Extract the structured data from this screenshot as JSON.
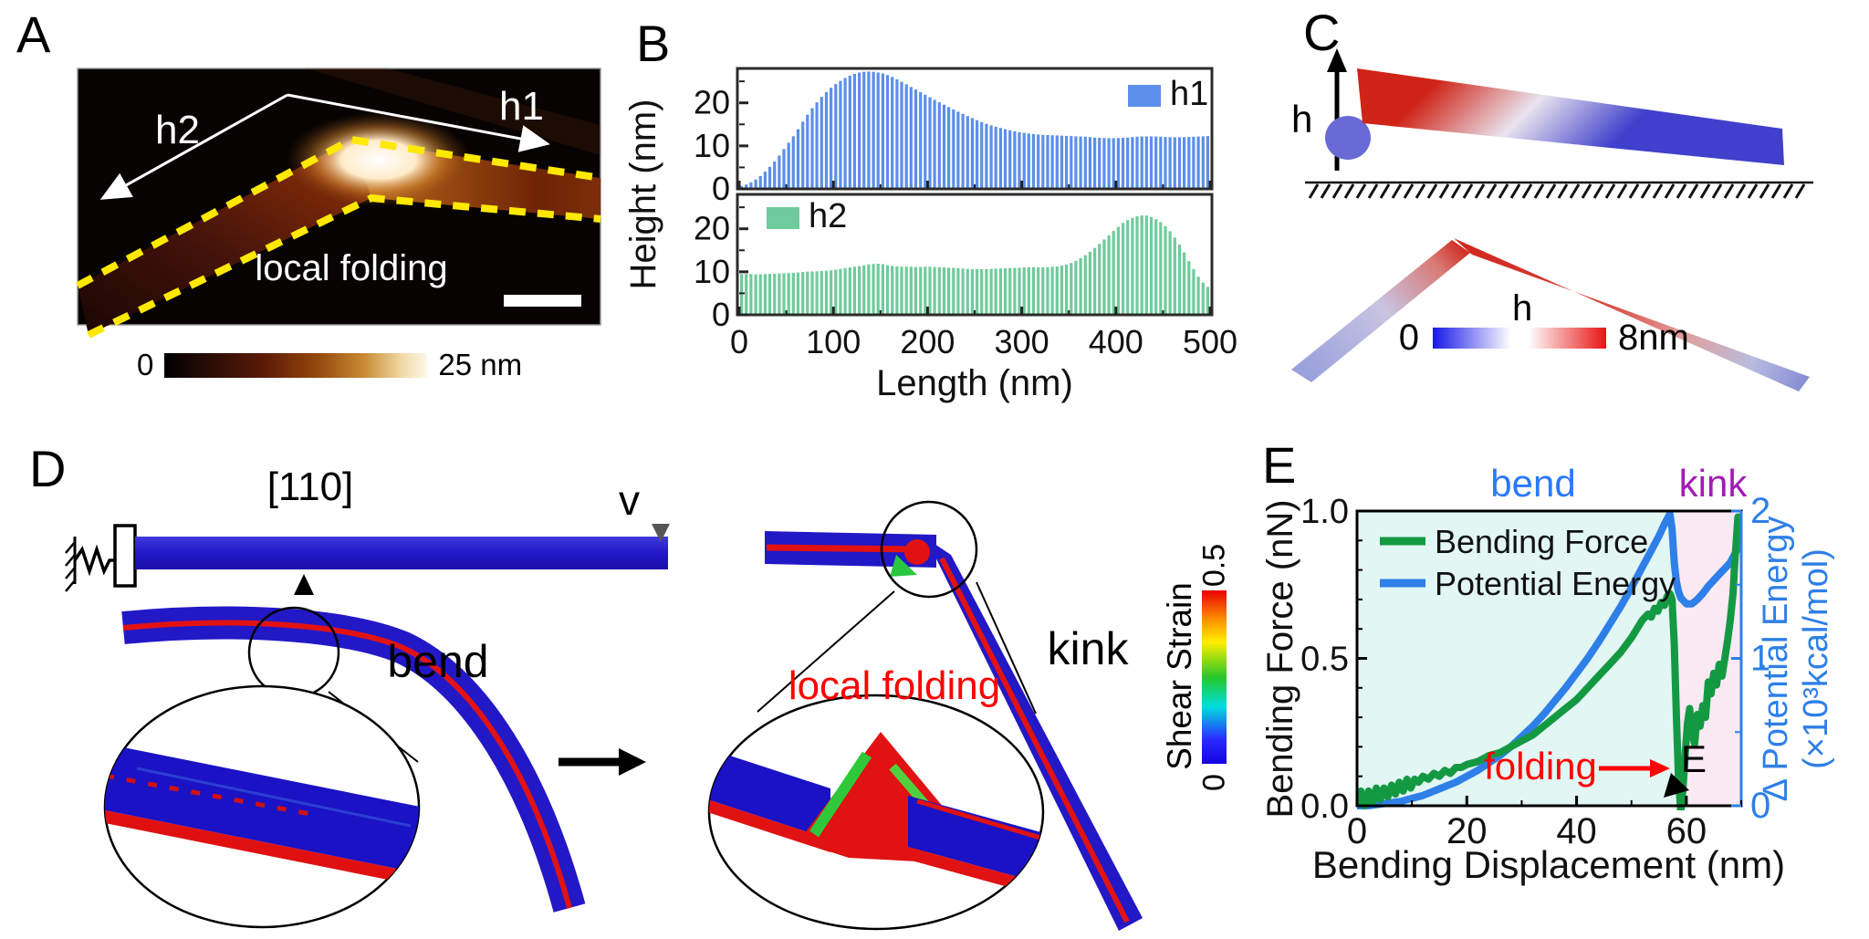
{
  "figure": {
    "panels": {
      "A": {
        "letter": "A",
        "h1": "h1",
        "h2": "h2",
        "annotation": "local folding",
        "colorbar_min": "0",
        "colorbar_max": "25 nm"
      },
      "B": {
        "letter": "B",
        "ylabel": "Height (nm)",
        "xlabel": "Length (nm)",
        "h1_legend": "h1",
        "h2_legend": "h2",
        "y_ticks": [
          "0",
          "10",
          "20"
        ],
        "x_ticks": [
          "0",
          "100",
          "200",
          "300",
          "400",
          "500"
        ]
      },
      "C": {
        "letter": "C",
        "h_axis": "h",
        "cb_label": "h",
        "cb_min": "0",
        "cb_max": "8nm"
      },
      "D": {
        "letter": "D",
        "crystal_dir": "[110]",
        "velocity": "v",
        "bend": "bend",
        "kink": "kink",
        "local_folding": "local folding",
        "cb_label": "Shear Strain",
        "cb_min": "0",
        "cb_max": "0.5"
      },
      "E": {
        "letter": "E",
        "bend": "bend",
        "kink": "kink",
        "ylabel_left": "Bending Force (nN)",
        "ylabel_right1": "Δ Potential Energy",
        "ylabel_right2": "(×10³kcal/mol)",
        "xlabel": "Bending Displacement (nm)",
        "legend": [
          "Bending Force",
          "Potential Energy"
        ],
        "folding": "folding",
        "marker": "E",
        "x_ticks": [
          "0",
          "20",
          "40",
          "60"
        ],
        "left_ticks": [
          "0.0",
          "0.5",
          "1.0"
        ],
        "right_ticks": [
          "0",
          "1",
          "2"
        ]
      }
    }
  },
  "colors": {
    "h1": "#5B8FE9",
    "h2": "#6FCB9B",
    "force": "#149943",
    "energy": "#2E7FE8",
    "bend_text": "#2979FF",
    "kink_text": "#A21CB4",
    "bend_bg": "#E2F6F3",
    "kink_bg": "#FBE9F4",
    "folding_red": "#FF0000",
    "afm_yellow": "#FFE900"
  },
  "chart_data": [
    {
      "type": "bar",
      "name": "h1",
      "xlabel": "Length (nm)",
      "ylabel": "Height (nm)",
      "xlim": [
        0,
        500
      ],
      "ylim": [
        0,
        28
      ],
      "x_step": 10,
      "values": [
        0.5,
        1.2,
        2.5,
        4.5,
        7,
        10,
        13,
        16.5,
        19.5,
        22,
        24,
        25.5,
        26.6,
        27.2,
        27.3,
        27,
        26.3,
        25.2,
        24,
        22.8,
        21.6,
        20.4,
        19.3,
        18.2,
        17.2,
        16.2,
        15.3,
        14.6,
        14,
        13.5,
        13.1,
        12.8,
        12.6,
        12.5,
        12.4,
        12.3,
        12.2,
        12.1,
        11.9,
        11.8,
        11.8,
        11.9,
        12.1,
        12.2,
        12.2,
        12.1,
        12,
        12,
        12.1,
        12.2,
        12.3
      ]
    },
    {
      "type": "bar",
      "name": "h2",
      "xlabel": "Length (nm)",
      "ylabel": "Height (nm)",
      "xlim": [
        0,
        500
      ],
      "ylim": [
        0,
        28
      ],
      "x_step": 10,
      "values": [
        9.5,
        9.5,
        9.4,
        9.5,
        9.6,
        9.7,
        9.8,
        10,
        10.1,
        10.2,
        10.4,
        10.8,
        11.1,
        11.4,
        11.8,
        11.9,
        11.4,
        11.2,
        11.2,
        11.1,
        11.2,
        11.1,
        11,
        10.9,
        10.7,
        10.6,
        10.6,
        10.7,
        10.8,
        10.9,
        11,
        11.1,
        11,
        11.1,
        11.3,
        11.8,
        12.8,
        14.2,
        16,
        18,
        20,
        21.8,
        22.8,
        23.2,
        22.6,
        21.2,
        18.8,
        15.5,
        11.5,
        8,
        6
      ]
    },
    {
      "type": "line",
      "xlabel": "Bending Displacement (nm)",
      "xlim": [
        0,
        70
      ],
      "ylabel_left": "Bending Force (nN)",
      "ylim_left": [
        0,
        1.0
      ],
      "ylabel_right": "Δ Potential Energy (×10³kcal/mol)",
      "ylim_right": [
        0,
        2
      ],
      "regions": [
        {
          "label": "bend",
          "range": [
            0,
            58.3
          ]
        },
        {
          "label": "kink",
          "range": [
            58.3,
            70
          ]
        }
      ],
      "series": [
        {
          "name": "Bending Force",
          "axis": "left",
          "points": [
            [
              0,
              0.01
            ],
            [
              0.7,
              0.05
            ],
            [
              1.4,
              0
            ],
            [
              2.1,
              0.05
            ],
            [
              2.8,
              0.01
            ],
            [
              3.5,
              0.06
            ],
            [
              4.2,
              0.02
            ],
            [
              4.9,
              0.06
            ],
            [
              5.6,
              0.03
            ],
            [
              6.3,
              0.07
            ],
            [
              7,
              0.04
            ],
            [
              7.7,
              0.08
            ],
            [
              8.4,
              0.05
            ],
            [
              9.1,
              0.09
            ],
            [
              9.8,
              0.06
            ],
            [
              10.5,
              0.09
            ],
            [
              11.2,
              0.08
            ],
            [
              12,
              0.1
            ],
            [
              13,
              0.09
            ],
            [
              14,
              0.11
            ],
            [
              15,
              0.1
            ],
            [
              16,
              0.12
            ],
            [
              17,
              0.11
            ],
            [
              18,
              0.13
            ],
            [
              19,
              0.13
            ],
            [
              20,
              0.14
            ],
            [
              22,
              0.15
            ],
            [
              24,
              0.17
            ],
            [
              26,
              0.18
            ],
            [
              28,
              0.2
            ],
            [
              30,
              0.22
            ],
            [
              32,
              0.24
            ],
            [
              34,
              0.27
            ],
            [
              36,
              0.3
            ],
            [
              38,
              0.33
            ],
            [
              40,
              0.36
            ],
            [
              42,
              0.4
            ],
            [
              44,
              0.44
            ],
            [
              46,
              0.48
            ],
            [
              48,
              0.52
            ],
            [
              50,
              0.57
            ],
            [
              51,
              0.6
            ],
            [
              52,
              0.63
            ],
            [
              53,
              0.65
            ],
            [
              53.6,
              0.64
            ],
            [
              54.2,
              0.67
            ],
            [
              54.8,
              0.66
            ],
            [
              55.4,
              0.69
            ],
            [
              56,
              0.68
            ],
            [
              56.5,
              0.71
            ],
            [
              57,
              0.72
            ],
            [
              57.4,
              0.7
            ],
            [
              57.8,
              0.55
            ],
            [
              58.2,
              0.3
            ],
            [
              58.6,
              0.08
            ],
            [
              59,
              -0.02
            ],
            [
              59.4,
              0.06
            ],
            [
              59.8,
              0.18
            ],
            [
              60.2,
              0.28
            ],
            [
              60.6,
              0.33
            ],
            [
              61,
              0.25
            ],
            [
              61.5,
              0.21
            ],
            [
              62,
              0.31
            ],
            [
              62.5,
              0.27
            ],
            [
              63,
              0.34
            ],
            [
              63.5,
              0.3
            ],
            [
              64,
              0.42
            ],
            [
              64.5,
              0.38
            ],
            [
              65,
              0.45
            ],
            [
              65.5,
              0.41
            ],
            [
              66,
              0.48
            ],
            [
              66.5,
              0.44
            ],
            [
              67,
              0.5
            ],
            [
              67.5,
              0.56
            ],
            [
              68,
              0.63
            ],
            [
              68.5,
              0.72
            ],
            [
              68.8,
              0.82
            ],
            [
              69.1,
              0.9
            ],
            [
              69.4,
              0.98
            ]
          ]
        },
        {
          "name": "Potential Energy",
          "axis": "right",
          "points": [
            [
              0,
              0
            ],
            [
              2,
              0
            ],
            [
              4,
              0.01
            ],
            [
              6,
              0.02
            ],
            [
              8,
              0.03
            ],
            [
              10,
              0.05
            ],
            [
              12,
              0.07
            ],
            [
              14,
              0.1
            ],
            [
              16,
              0.13
            ],
            [
              18,
              0.16
            ],
            [
              20,
              0.2
            ],
            [
              22,
              0.24
            ],
            [
              24,
              0.29
            ],
            [
              26,
              0.34
            ],
            [
              28,
              0.4
            ],
            [
              30,
              0.47
            ],
            [
              32,
              0.54
            ],
            [
              34,
              0.62
            ],
            [
              36,
              0.71
            ],
            [
              38,
              0.8
            ],
            [
              40,
              0.9
            ],
            [
              42,
              1
            ],
            [
              44,
              1.11
            ],
            [
              46,
              1.23
            ],
            [
              48,
              1.35
            ],
            [
              50,
              1.48
            ],
            [
              52,
              1.62
            ],
            [
              54,
              1.76
            ],
            [
              55,
              1.83
            ],
            [
              56,
              1.91
            ],
            [
              57,
              1.98
            ],
            [
              57.4,
              1.88
            ],
            [
              57.8,
              1.65
            ],
            [
              58.2,
              1.52
            ],
            [
              58.6,
              1.45
            ],
            [
              59,
              1.41
            ],
            [
              59.5,
              1.39
            ],
            [
              60,
              1.37
            ],
            [
              61,
              1.37
            ],
            [
              62,
              1.4
            ],
            [
              63,
              1.44
            ],
            [
              64,
              1.49
            ],
            [
              65,
              1.53
            ],
            [
              66,
              1.57
            ],
            [
              67,
              1.61
            ],
            [
              68,
              1.65
            ],
            [
              68.7,
              1.7
            ],
            [
              69.4,
              1.75
            ]
          ]
        }
      ]
    }
  ]
}
